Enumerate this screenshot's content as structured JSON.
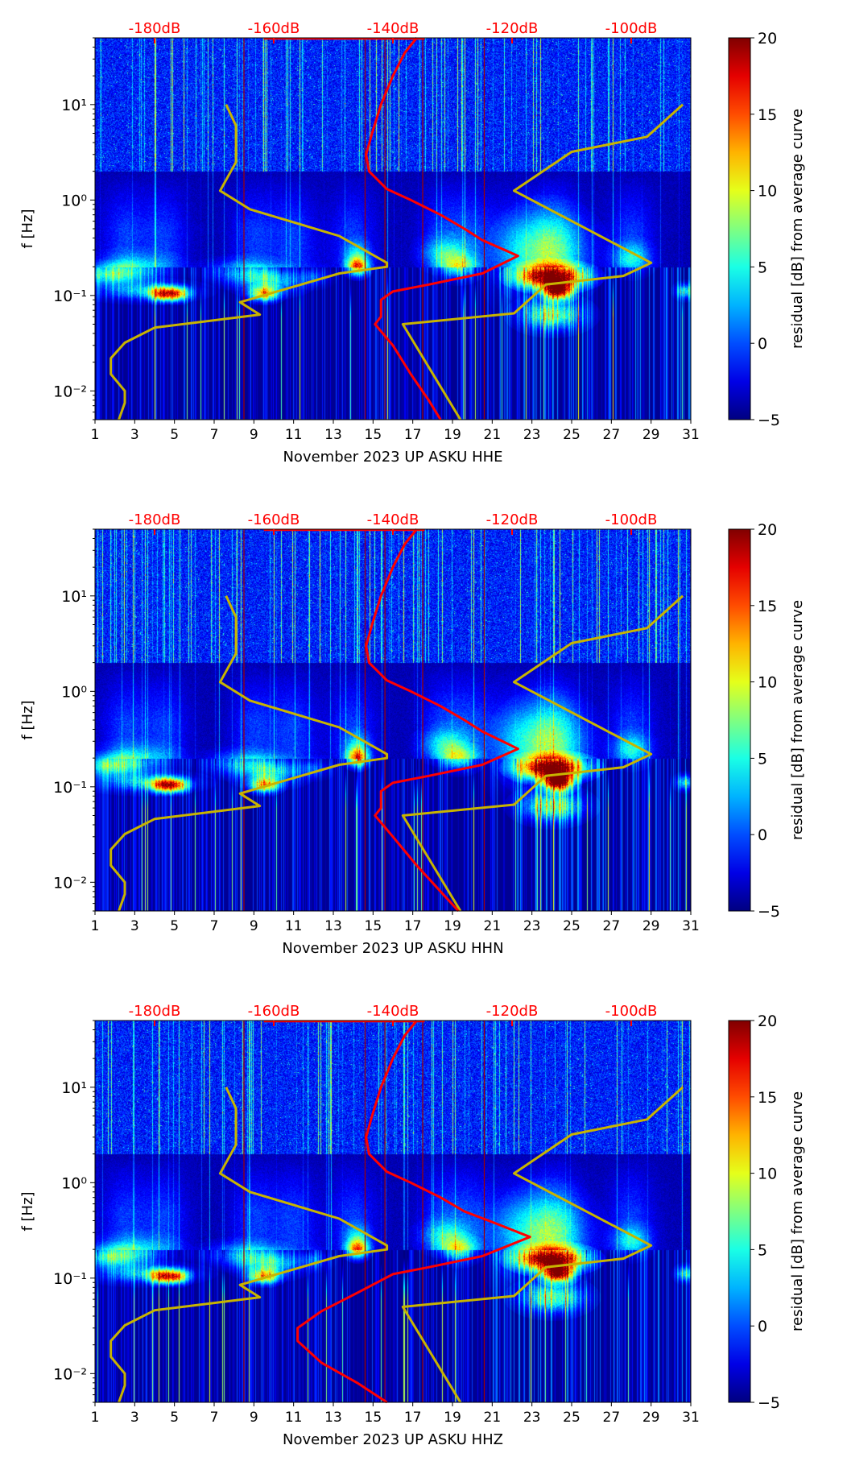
{
  "chart_data": [
    {
      "type": "heatmap",
      "title": "",
      "xlabel": "November 2023 UP ASKU  HHE",
      "ylabel": "f [Hz]",
      "xlim": [
        1,
        31
      ],
      "ylim": [
        0.005,
        50
      ],
      "yscale": "log",
      "xticks": [
        "1",
        "3",
        "5",
        "7",
        "9",
        "11",
        "13",
        "15",
        "17",
        "19",
        "21",
        "23",
        "25",
        "27",
        "29",
        "31"
      ],
      "yticks": [
        {
          "value": 0.01,
          "label": "10⁻²"
        },
        {
          "value": 0.1,
          "label": "10⁻¹"
        },
        {
          "value": 1,
          "label": "10⁰"
        },
        {
          "value": 10,
          "label": "10¹"
        }
      ],
      "top_axis_labels": [
        {
          "db": -180,
          "label": "-180dB"
        },
        {
          "db": -160,
          "label": "-160dB"
        },
        {
          "db": -140,
          "label": "-140dB"
        },
        {
          "db": -120,
          "label": "-120dB"
        },
        {
          "db": -100,
          "label": "-100dB"
        }
      ],
      "colorbar": {
        "label": "residual [dB] from average curve",
        "range": [
          -5,
          20
        ],
        "ticks": [
          "−5",
          "0",
          "5",
          "10",
          "15",
          "20"
        ],
        "colormap": "jet"
      },
      "series": [
        {
          "name": "yellow-curve",
          "color": "#c8b400",
          "points_day_hz": [
            [
              7.6,
              10
            ],
            [
              8.1,
              6
            ],
            [
              8.1,
              2.5
            ],
            [
              7.3,
              1.25
            ],
            [
              8.8,
              0.8
            ],
            [
              13.3,
              0.42
            ],
            [
              15.7,
              0.22
            ],
            [
              15.7,
              0.2
            ],
            [
              13.3,
              0.17
            ],
            [
              8.3,
              0.085
            ],
            [
              9.3,
              0.063
            ],
            [
              4.0,
              0.046
            ],
            [
              2.5,
              0.032
            ],
            [
              1.8,
              0.022
            ],
            [
              1.8,
              0.015
            ],
            [
              2.5,
              0.01
            ],
            [
              2.5,
              0.0075
            ],
            [
              2.2,
              0.005
            ]
          ]
        },
        {
          "name": "yellow-curve-2",
          "color": "#c8b400",
          "points_day_hz": [
            [
              19.4,
              0.005
            ],
            [
              16.5,
              0.05
            ],
            [
              22.1,
              0.065
            ],
            [
              23.7,
              0.13
            ],
            [
              27.6,
              0.16
            ],
            [
              29,
              0.22
            ],
            [
              22.1,
              1.25
            ],
            [
              25,
              3.2
            ],
            [
              28.8,
              4.6
            ],
            [
              30.6,
              10
            ]
          ]
        },
        {
          "name": "average-psd",
          "color": "#ff0000",
          "points_db_hz": [
            [
              -136,
              50
            ],
            [
              -138,
              35
            ],
            [
              -140,
              20
            ],
            [
              -142,
              10
            ],
            [
              -143.5,
              5
            ],
            [
              -144.5,
              3
            ],
            [
              -144,
              2
            ],
            [
              -141,
              1.3
            ],
            [
              -137,
              1.0
            ],
            [
              -132,
              0.7
            ],
            [
              -128,
              0.5
            ],
            [
              -125,
              0.38
            ],
            [
              -119,
              0.26
            ],
            [
              -125,
              0.17
            ],
            [
              -134,
              0.13
            ],
            [
              -140,
              0.11
            ],
            [
              -142,
              0.09
            ],
            [
              -142,
              0.06
            ],
            [
              -143,
              0.05
            ],
            [
              -140,
              0.03
            ],
            [
              -137,
              0.015
            ],
            [
              -134,
              0.008
            ],
            [
              -132,
              0.005
            ]
          ]
        }
      ]
    },
    {
      "type": "heatmap",
      "xlabel": "November 2023 UP ASKU  HHN",
      "ylabel": "f [Hz]",
      "xlim": [
        1,
        31
      ],
      "ylim": [
        0.005,
        50
      ],
      "yscale": "log",
      "xticks": [
        "1",
        "3",
        "5",
        "7",
        "9",
        "11",
        "13",
        "15",
        "17",
        "19",
        "21",
        "23",
        "25",
        "27",
        "29",
        "31"
      ],
      "yticks": [
        {
          "value": 0.01,
          "label": "10⁻²"
        },
        {
          "value": 0.1,
          "label": "10⁻¹"
        },
        {
          "value": 1,
          "label": "10⁰"
        },
        {
          "value": 10,
          "label": "10¹"
        }
      ],
      "top_axis_labels": [
        {
          "db": -180,
          "label": "-180dB"
        },
        {
          "db": -160,
          "label": "-160dB"
        },
        {
          "db": -140,
          "label": "-140dB"
        },
        {
          "db": -120,
          "label": "-120dB"
        },
        {
          "db": -100,
          "label": "-100dB"
        }
      ],
      "colorbar": {
        "label": "residual [dB] from average curve",
        "range": [
          -5,
          20
        ],
        "ticks": [
          "−5",
          "0",
          "5",
          "10",
          "15",
          "20"
        ],
        "colormap": "jet"
      },
      "series": [
        {
          "name": "yellow-curve",
          "color": "#c8b400",
          "points_day_hz": [
            [
              7.6,
              10
            ],
            [
              8.1,
              6
            ],
            [
              8.1,
              2.5
            ],
            [
              7.3,
              1.25
            ],
            [
              8.8,
              0.8
            ],
            [
              13.3,
              0.42
            ],
            [
              15.7,
              0.22
            ],
            [
              15.7,
              0.2
            ],
            [
              13.3,
              0.17
            ],
            [
              8.3,
              0.085
            ],
            [
              9.3,
              0.063
            ],
            [
              4.0,
              0.046
            ],
            [
              2.5,
              0.032
            ],
            [
              1.8,
              0.022
            ],
            [
              1.8,
              0.015
            ],
            [
              2.5,
              0.01
            ],
            [
              2.5,
              0.0075
            ],
            [
              2.2,
              0.005
            ]
          ]
        },
        {
          "name": "yellow-curve-2",
          "color": "#c8b400",
          "points_day_hz": [
            [
              19.4,
              0.005
            ],
            [
              16.5,
              0.05
            ],
            [
              22.1,
              0.065
            ],
            [
              23.7,
              0.13
            ],
            [
              27.6,
              0.16
            ],
            [
              29,
              0.22
            ],
            [
              22.1,
              1.25
            ],
            [
              25,
              3.2
            ],
            [
              28.8,
              4.6
            ],
            [
              30.6,
              10
            ]
          ]
        },
        {
          "name": "average-psd",
          "color": "#ff0000",
          "points_db_hz": [
            [
              -136,
              50
            ],
            [
              -138,
              35
            ],
            [
              -140,
              20
            ],
            [
              -142,
              10
            ],
            [
              -143.5,
              5
            ],
            [
              -144.5,
              3
            ],
            [
              -144,
              2
            ],
            [
              -141,
              1.3
            ],
            [
              -137,
              1.0
            ],
            [
              -132,
              0.7
            ],
            [
              -128,
              0.5
            ],
            [
              -125,
              0.38
            ],
            [
              -119,
              0.25
            ],
            [
              -125,
              0.17
            ],
            [
              -134,
              0.13
            ],
            [
              -140,
              0.11
            ],
            [
              -142,
              0.09
            ],
            [
              -142,
              0.06
            ],
            [
              -143,
              0.05
            ],
            [
              -140,
              0.03
            ],
            [
              -136,
              0.015
            ],
            [
              -132,
              0.008
            ],
            [
              -129,
              0.005
            ]
          ]
        }
      ]
    },
    {
      "type": "heatmap",
      "xlabel": "November 2023 UP ASKU  HHZ",
      "ylabel": "f [Hz]",
      "xlim": [
        1,
        31
      ],
      "ylim": [
        0.005,
        50
      ],
      "yscale": "log",
      "xticks": [
        "1",
        "3",
        "5",
        "7",
        "9",
        "11",
        "13",
        "15",
        "17",
        "19",
        "21",
        "23",
        "25",
        "27",
        "29",
        "31"
      ],
      "yticks": [
        {
          "value": 0.01,
          "label": "10⁻²"
        },
        {
          "value": 0.1,
          "label": "10⁻¹"
        },
        {
          "value": 1,
          "label": "10⁰"
        },
        {
          "value": 10,
          "label": "10¹"
        }
      ],
      "top_axis_labels": [
        {
          "db": -180,
          "label": "-180dB"
        },
        {
          "db": -160,
          "label": "-160dB"
        },
        {
          "db": -140,
          "label": "-140dB"
        },
        {
          "db": -120,
          "label": "-120dB"
        },
        {
          "db": -100,
          "label": "-100dB"
        }
      ],
      "colorbar": {
        "label": "residual [dB] from average curve",
        "range": [
          -5,
          20
        ],
        "ticks": [
          "−5",
          "0",
          "5",
          "10",
          "15",
          "20"
        ],
        "colormap": "jet"
      },
      "series": [
        {
          "name": "yellow-curve",
          "color": "#c8b400",
          "points_day_hz": [
            [
              7.6,
              10
            ],
            [
              8.1,
              6
            ],
            [
              8.1,
              2.5
            ],
            [
              7.3,
              1.25
            ],
            [
              8.8,
              0.8
            ],
            [
              13.3,
              0.42
            ],
            [
              15.7,
              0.22
            ],
            [
              15.7,
              0.2
            ],
            [
              13.3,
              0.17
            ],
            [
              8.3,
              0.085
            ],
            [
              9.3,
              0.063
            ],
            [
              4.0,
              0.046
            ],
            [
              2.5,
              0.032
            ],
            [
              1.8,
              0.022
            ],
            [
              1.8,
              0.015
            ],
            [
              2.5,
              0.01
            ],
            [
              2.5,
              0.0075
            ],
            [
              2.2,
              0.005
            ]
          ]
        },
        {
          "name": "yellow-curve-2",
          "color": "#c8b400",
          "points_day_hz": [
            [
              19.4,
              0.005
            ],
            [
              16.5,
              0.05
            ],
            [
              22.1,
              0.065
            ],
            [
              23.7,
              0.13
            ],
            [
              27.6,
              0.16
            ],
            [
              29,
              0.22
            ],
            [
              22.1,
              1.25
            ],
            [
              25,
              3.2
            ],
            [
              28.8,
              4.6
            ],
            [
              30.6,
              10
            ]
          ]
        },
        {
          "name": "average-psd",
          "color": "#ff0000",
          "points_db_hz": [
            [
              -136,
              50
            ],
            [
              -138,
              35
            ],
            [
              -140,
              20
            ],
            [
              -142,
              10
            ],
            [
              -143.5,
              5
            ],
            [
              -144.5,
              3
            ],
            [
              -144,
              2
            ],
            [
              -141,
              1.3
            ],
            [
              -137,
              1.0
            ],
            [
              -132,
              0.7
            ],
            [
              -128,
              0.5
            ],
            [
              -123,
              0.38
            ],
            [
              -117,
              0.27
            ],
            [
              -125,
              0.17
            ],
            [
              -134,
              0.13
            ],
            [
              -140,
              0.11
            ],
            [
              -146,
              0.07
            ],
            [
              -152,
              0.045
            ],
            [
              -156,
              0.03
            ],
            [
              -156,
              0.022
            ],
            [
              -152,
              0.013
            ],
            [
              -146,
              0.008
            ],
            [
              -141,
              0.005
            ]
          ]
        }
      ]
    }
  ]
}
